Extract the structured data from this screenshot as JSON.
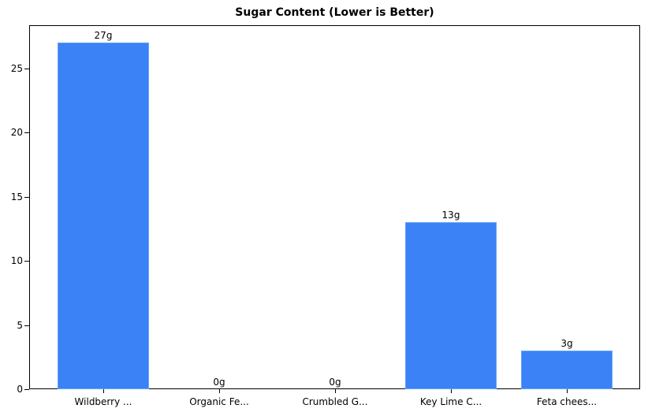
{
  "chart_data": {
    "type": "bar",
    "title": "Sugar Content (Lower is Better)",
    "xlabel": "",
    "ylabel": "",
    "categories": [
      "Wildberry ...",
      "Organic Fe...",
      "Crumbled G...",
      "Key Lime C...",
      "Feta chees..."
    ],
    "values": [
      27,
      0,
      0,
      13,
      3
    ],
    "value_labels": [
      "27g",
      "0g",
      "0g",
      "13g",
      "3g"
    ],
    "ylim": [
      0,
      28.35
    ],
    "yticks": [
      0,
      5,
      10,
      15,
      20,
      25
    ],
    "bar_color": "#3b82f6",
    "grid": false,
    "legend": null
  }
}
